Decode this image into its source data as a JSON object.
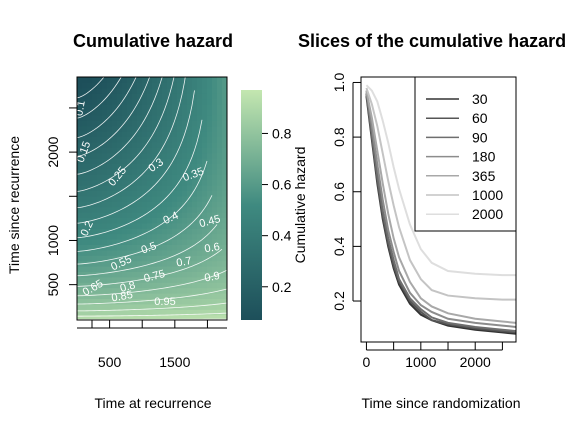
{
  "chart_data": [
    {
      "type": "heatmap",
      "title": "Cumulative hazard",
      "xlabel": "Time at recurrence",
      "ylabel": "Time since recurrence",
      "xticks": [
        500,
        1500
      ],
      "yticks": [
        500,
        1000,
        2000
      ],
      "xlim": [
        0,
        2300
      ],
      "ylim": [
        100,
        2850
      ],
      "colorbar": {
        "label": "Cumulative hazard",
        "ticks": [
          0.2,
          0.4,
          0.6,
          0.8
        ],
        "tick_labels": [
          "0.2",
          "0.4",
          "0.6",
          "0.8"
        ],
        "range": [
          0.07,
          0.97
        ],
        "low_color": "#1d4f5a",
        "mid_color": "#3f8a80",
        "high_color": "#c4e7b0"
      },
      "contour_labels": [
        {
          "text": "0.1",
          "x": 100,
          "y": 2490,
          "rotate": -80
        },
        {
          "text": "0.15",
          "x": 150,
          "y": 1990,
          "rotate": -70
        },
        {
          "text": "0.2",
          "x": 200,
          "y": 1120,
          "rotate": -65
        },
        {
          "text": "0.25",
          "x": 660,
          "y": 1700,
          "rotate": -50
        },
        {
          "text": "0.3",
          "x": 1240,
          "y": 1820,
          "rotate": -35
        },
        {
          "text": "0.35",
          "x": 1800,
          "y": 1710,
          "rotate": -20
        },
        {
          "text": "0.4",
          "x": 1460,
          "y": 1220,
          "rotate": -25
        },
        {
          "text": "0.45",
          "x": 2050,
          "y": 1180,
          "rotate": -15
        },
        {
          "text": "0.5",
          "x": 1120,
          "y": 880,
          "rotate": -20
        },
        {
          "text": "0.55",
          "x": 700,
          "y": 710,
          "rotate": -25
        },
        {
          "text": "0.6",
          "x": 2080,
          "y": 880,
          "rotate": -10
        },
        {
          "text": "0.65",
          "x": 270,
          "y": 430,
          "rotate": -30
        },
        {
          "text": "0.7",
          "x": 1650,
          "y": 720,
          "rotate": -10
        },
        {
          "text": "0.75",
          "x": 1200,
          "y": 560,
          "rotate": -15
        },
        {
          "text": "0.8",
          "x": 790,
          "y": 440,
          "rotate": -15
        },
        {
          "text": "0.85",
          "x": 700,
          "y": 330,
          "rotate": -10
        },
        {
          "text": "0.9",
          "x": 2080,
          "y": 550,
          "rotate": -10
        },
        {
          "text": "0.95",
          "x": 1350,
          "y": 270,
          "rotate": 0
        }
      ]
    },
    {
      "type": "line",
      "title": "Slices of the cumulative hazard",
      "xlabel": "Time since randomization",
      "ylabel": "",
      "xlim": [
        -100,
        2750
      ],
      "ylim": [
        0.05,
        1.02
      ],
      "xticks": [
        0,
        1000,
        2000
      ],
      "yticks": [
        0.2,
        0.4,
        0.6,
        0.8,
        1.0
      ],
      "ytick_labels": [
        "0.2",
        "0.4",
        "0.6",
        "0.8",
        "1.0"
      ],
      "legend_position": "top-right",
      "x": [
        0,
        100,
        200,
        300,
        400,
        500,
        600,
        800,
        1000,
        1200,
        1500,
        2000,
        2500,
        2750
      ],
      "series": [
        {
          "name": "30",
          "color": "#333333",
          "values": [
            0.95,
            0.79,
            0.63,
            0.5,
            0.4,
            0.32,
            0.26,
            0.19,
            0.15,
            0.13,
            0.11,
            0.095,
            0.085,
            0.08
          ]
        },
        {
          "name": "60",
          "color": "#555555",
          "values": [
            0.96,
            0.8,
            0.64,
            0.51,
            0.41,
            0.33,
            0.27,
            0.2,
            0.16,
            0.13,
            0.115,
            0.1,
            0.09,
            0.085
          ]
        },
        {
          "name": "90",
          "color": "#6e6e6e",
          "values": [
            0.96,
            0.81,
            0.66,
            0.53,
            0.43,
            0.35,
            0.28,
            0.21,
            0.17,
            0.14,
            0.12,
            0.105,
            0.095,
            0.09
          ]
        },
        {
          "name": "180",
          "color": "#8c8c8c",
          "values": [
            0.97,
            0.84,
            0.7,
            0.57,
            0.46,
            0.38,
            0.31,
            0.23,
            0.185,
            0.16,
            0.135,
            0.12,
            0.11,
            0.105
          ]
        },
        {
          "name": "365",
          "color": "#a8a8a8",
          "values": [
            0.97,
            0.87,
            0.75,
            0.63,
            0.52,
            0.43,
            0.36,
            0.27,
            0.21,
            0.18,
            0.155,
            0.135,
            0.125,
            0.12
          ]
        },
        {
          "name": "1000",
          "color": "#c4c4c4",
          "values": [
            0.98,
            0.92,
            0.84,
            0.74,
            0.64,
            0.55,
            0.47,
            0.35,
            0.28,
            0.24,
            0.22,
            0.21,
            0.205,
            0.205
          ]
        },
        {
          "name": "2000",
          "color": "#dedede",
          "values": [
            0.99,
            0.97,
            0.93,
            0.86,
            0.78,
            0.69,
            0.61,
            0.48,
            0.39,
            0.34,
            0.31,
            0.3,
            0.295,
            0.295
          ]
        }
      ]
    }
  ]
}
